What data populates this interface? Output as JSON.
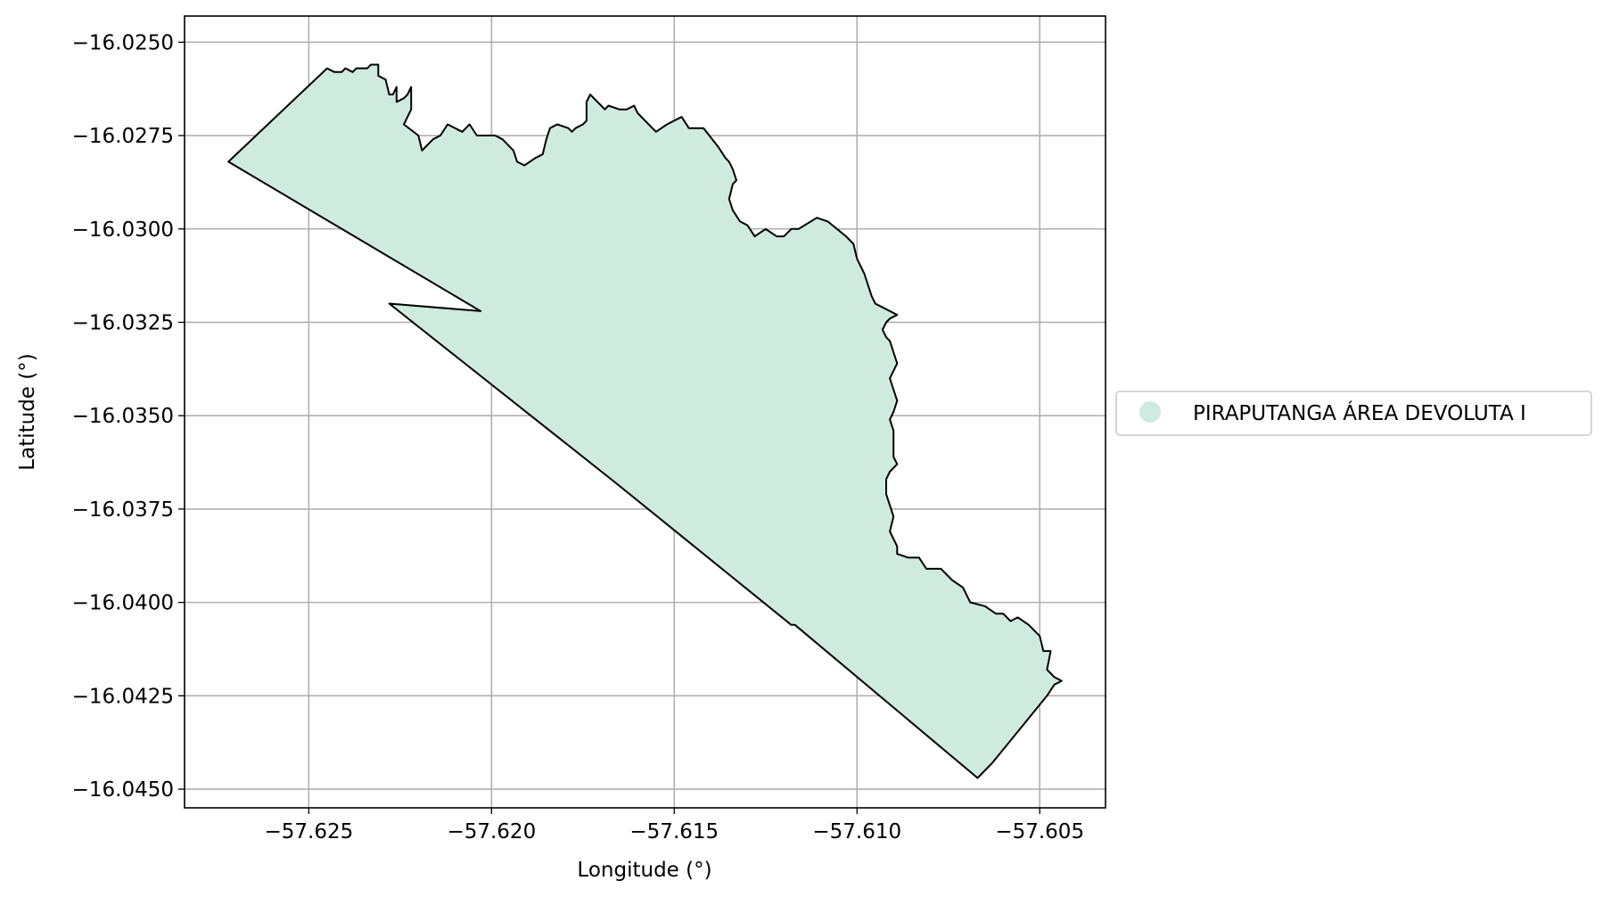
{
  "chart_data": {
    "type": "map",
    "xlabel": "Longitude (°)",
    "ylabel": "Latitude (°)",
    "xlim": [
      -57.6284,
      -57.6032
    ],
    "ylim": [
      -16.0455,
      -16.0243
    ],
    "xticks": [
      -57.625,
      -57.62,
      -57.615,
      -57.61,
      -57.605
    ],
    "xtick_labels": [
      "−57.625",
      "−57.620",
      "−57.615",
      "−57.610",
      "−57.605"
    ],
    "yticks": [
      -16.025,
      -16.0275,
      -16.03,
      -16.0325,
      -16.035,
      -16.0375,
      -16.04,
      -16.0425,
      -16.045
    ],
    "ytick_labels": [
      "−16.0250",
      "−16.0275",
      "−16.0300",
      "−16.0325",
      "−16.0350",
      "−16.0375",
      "−16.0400",
      "−16.0425",
      "−16.0450"
    ],
    "grid": true,
    "legend_position": "right",
    "series": [
      {
        "name": "PIRAPUTANGA ÁREA DEVOLUTA I",
        "fill": "#cfeadf",
        "edge": "#000000",
        "polygon": [
          [
            -57.6272,
            -16.0282
          ],
          [
            -57.6245,
            -16.0257
          ],
          [
            -57.6243,
            -16.0258
          ],
          [
            -57.6241,
            -16.0258
          ],
          [
            -57.624,
            -16.0257
          ],
          [
            -57.6238,
            -16.0258
          ],
          [
            -57.6237,
            -16.0257
          ],
          [
            -57.6234,
            -16.0257
          ],
          [
            -57.6233,
            -16.0256
          ],
          [
            -57.6231,
            -16.0256
          ],
          [
            -57.6231,
            -16.0259
          ],
          [
            -57.6229,
            -16.026
          ],
          [
            -57.6228,
            -16.0264
          ],
          [
            -57.6227,
            -16.0264
          ],
          [
            -57.6226,
            -16.0262
          ],
          [
            -57.6226,
            -16.0266
          ],
          [
            -57.6224,
            -16.0265
          ],
          [
            -57.6223,
            -16.0264
          ],
          [
            -57.6222,
            -16.0262
          ],
          [
            -57.6222,
            -16.0268
          ],
          [
            -57.6224,
            -16.0272
          ],
          [
            -57.622,
            -16.0275
          ],
          [
            -57.6219,
            -16.0279
          ],
          [
            -57.6216,
            -16.0276
          ],
          [
            -57.6214,
            -16.0275
          ],
          [
            -57.6212,
            -16.0272
          ],
          [
            -57.6208,
            -16.0274
          ],
          [
            -57.6206,
            -16.0272
          ],
          [
            -57.6204,
            -16.0275
          ],
          [
            -57.6199,
            -16.0275
          ],
          [
            -57.6197,
            -16.0276
          ],
          [
            -57.6194,
            -16.0279
          ],
          [
            -57.6193,
            -16.0282
          ],
          [
            -57.6191,
            -16.0283
          ],
          [
            -57.6188,
            -16.0281
          ],
          [
            -57.6186,
            -16.028
          ],
          [
            -57.6185,
            -16.0276
          ],
          [
            -57.6184,
            -16.0273
          ],
          [
            -57.6182,
            -16.0272
          ],
          [
            -57.6179,
            -16.0273
          ],
          [
            -57.6178,
            -16.0274
          ],
          [
            -57.6177,
            -16.0273
          ],
          [
            -57.6175,
            -16.0272
          ],
          [
            -57.6174,
            -16.0271
          ],
          [
            -57.6174,
            -16.0266
          ],
          [
            -57.6173,
            -16.0264
          ],
          [
            -57.6171,
            -16.0266
          ],
          [
            -57.6169,
            -16.0268
          ],
          [
            -57.6168,
            -16.0267
          ],
          [
            -57.6165,
            -16.0268
          ],
          [
            -57.6163,
            -16.0268
          ],
          [
            -57.6161,
            -16.0267
          ],
          [
            -57.616,
            -16.0269
          ],
          [
            -57.6158,
            -16.0271
          ],
          [
            -57.6155,
            -16.0274
          ],
          [
            -57.6152,
            -16.0272
          ],
          [
            -57.6148,
            -16.027
          ],
          [
            -57.6146,
            -16.0273
          ],
          [
            -57.6142,
            -16.0273
          ],
          [
            -57.6138,
            -16.0278
          ],
          [
            -57.6136,
            -16.0281
          ],
          [
            -57.6135,
            -16.0282
          ],
          [
            -57.6134,
            -16.0284
          ],
          [
            -57.6133,
            -16.0287
          ],
          [
            -57.6134,
            -16.0288
          ],
          [
            -57.6135,
            -16.0292
          ],
          [
            -57.6134,
            -16.0295
          ],
          [
            -57.6132,
            -16.0298
          ],
          [
            -57.613,
            -16.0299
          ],
          [
            -57.6128,
            -16.0302
          ],
          [
            -57.6125,
            -16.03
          ],
          [
            -57.6122,
            -16.0302
          ],
          [
            -57.612,
            -16.0302
          ],
          [
            -57.6118,
            -16.03
          ],
          [
            -57.6116,
            -16.03
          ],
          [
            -57.6111,
            -16.0297
          ],
          [
            -57.6108,
            -16.0298
          ],
          [
            -57.6103,
            -16.0302
          ],
          [
            -57.6101,
            -16.0304
          ],
          [
            -57.61,
            -16.0308
          ],
          [
            -57.6098,
            -16.0312
          ],
          [
            -57.6096,
            -16.0318
          ],
          [
            -57.6095,
            -16.032
          ],
          [
            -57.6093,
            -16.0321
          ],
          [
            -57.6091,
            -16.0322
          ],
          [
            -57.6089,
            -16.0323
          ],
          [
            -57.6091,
            -16.0324
          ],
          [
            -57.6092,
            -16.0325
          ],
          [
            -57.6093,
            -16.0327
          ],
          [
            -57.6092,
            -16.0329
          ],
          [
            -57.6091,
            -16.033
          ],
          [
            -57.609,
            -16.0333
          ],
          [
            -57.6089,
            -16.0336
          ],
          [
            -57.609,
            -16.0338
          ],
          [
            -57.6091,
            -16.034
          ],
          [
            -57.609,
            -16.0343
          ],
          [
            -57.6089,
            -16.0346
          ],
          [
            -57.609,
            -16.0349
          ],
          [
            -57.6091,
            -16.0351
          ],
          [
            -57.609,
            -16.0354
          ],
          [
            -57.609,
            -16.0357
          ],
          [
            -57.609,
            -16.0361
          ],
          [
            -57.6089,
            -16.0363
          ],
          [
            -57.6091,
            -16.0365
          ],
          [
            -57.6092,
            -16.0367
          ],
          [
            -57.6092,
            -16.0371
          ],
          [
            -57.6091,
            -16.0374
          ],
          [
            -57.609,
            -16.0377
          ],
          [
            -57.6091,
            -16.0381
          ],
          [
            -57.6089,
            -16.0385
          ],
          [
            -57.6089,
            -16.0387
          ],
          [
            -57.6086,
            -16.0388
          ],
          [
            -57.6083,
            -16.0388
          ],
          [
            -57.6081,
            -16.0391
          ],
          [
            -57.6077,
            -16.0391
          ],
          [
            -57.6074,
            -16.0394
          ],
          [
            -57.6071,
            -16.0396
          ],
          [
            -57.6069,
            -16.04
          ],
          [
            -57.6065,
            -16.0401
          ],
          [
            -57.6062,
            -16.0403
          ],
          [
            -57.606,
            -16.0403
          ],
          [
            -57.6058,
            -16.0405
          ],
          [
            -57.6056,
            -16.0404
          ],
          [
            -57.6053,
            -16.0406
          ],
          [
            -57.605,
            -16.0409
          ],
          [
            -57.6049,
            -16.0413
          ],
          [
            -57.6047,
            -16.0413
          ],
          [
            -57.6048,
            -16.0418
          ],
          [
            -57.6046,
            -16.042
          ],
          [
            -57.6044,
            -16.0421
          ],
          [
            -57.6046,
            -16.0422
          ],
          [
            -57.6048,
            -16.0425
          ],
          [
            -57.6063,
            -16.0443
          ],
          [
            -57.6067,
            -16.0447
          ],
          [
            -57.6117,
            -16.0406
          ],
          [
            -57.6118,
            -16.0406
          ],
          [
            -57.6166,
            -16.0368
          ],
          [
            -57.6228,
            -16.032
          ],
          [
            -57.6203,
            -16.0322
          ]
        ]
      }
    ]
  },
  "legend": {
    "items": [
      {
        "label": "PIRAPUTANGA ÁREA DEVOLUTA I",
        "color": "#cfeadf"
      }
    ]
  }
}
